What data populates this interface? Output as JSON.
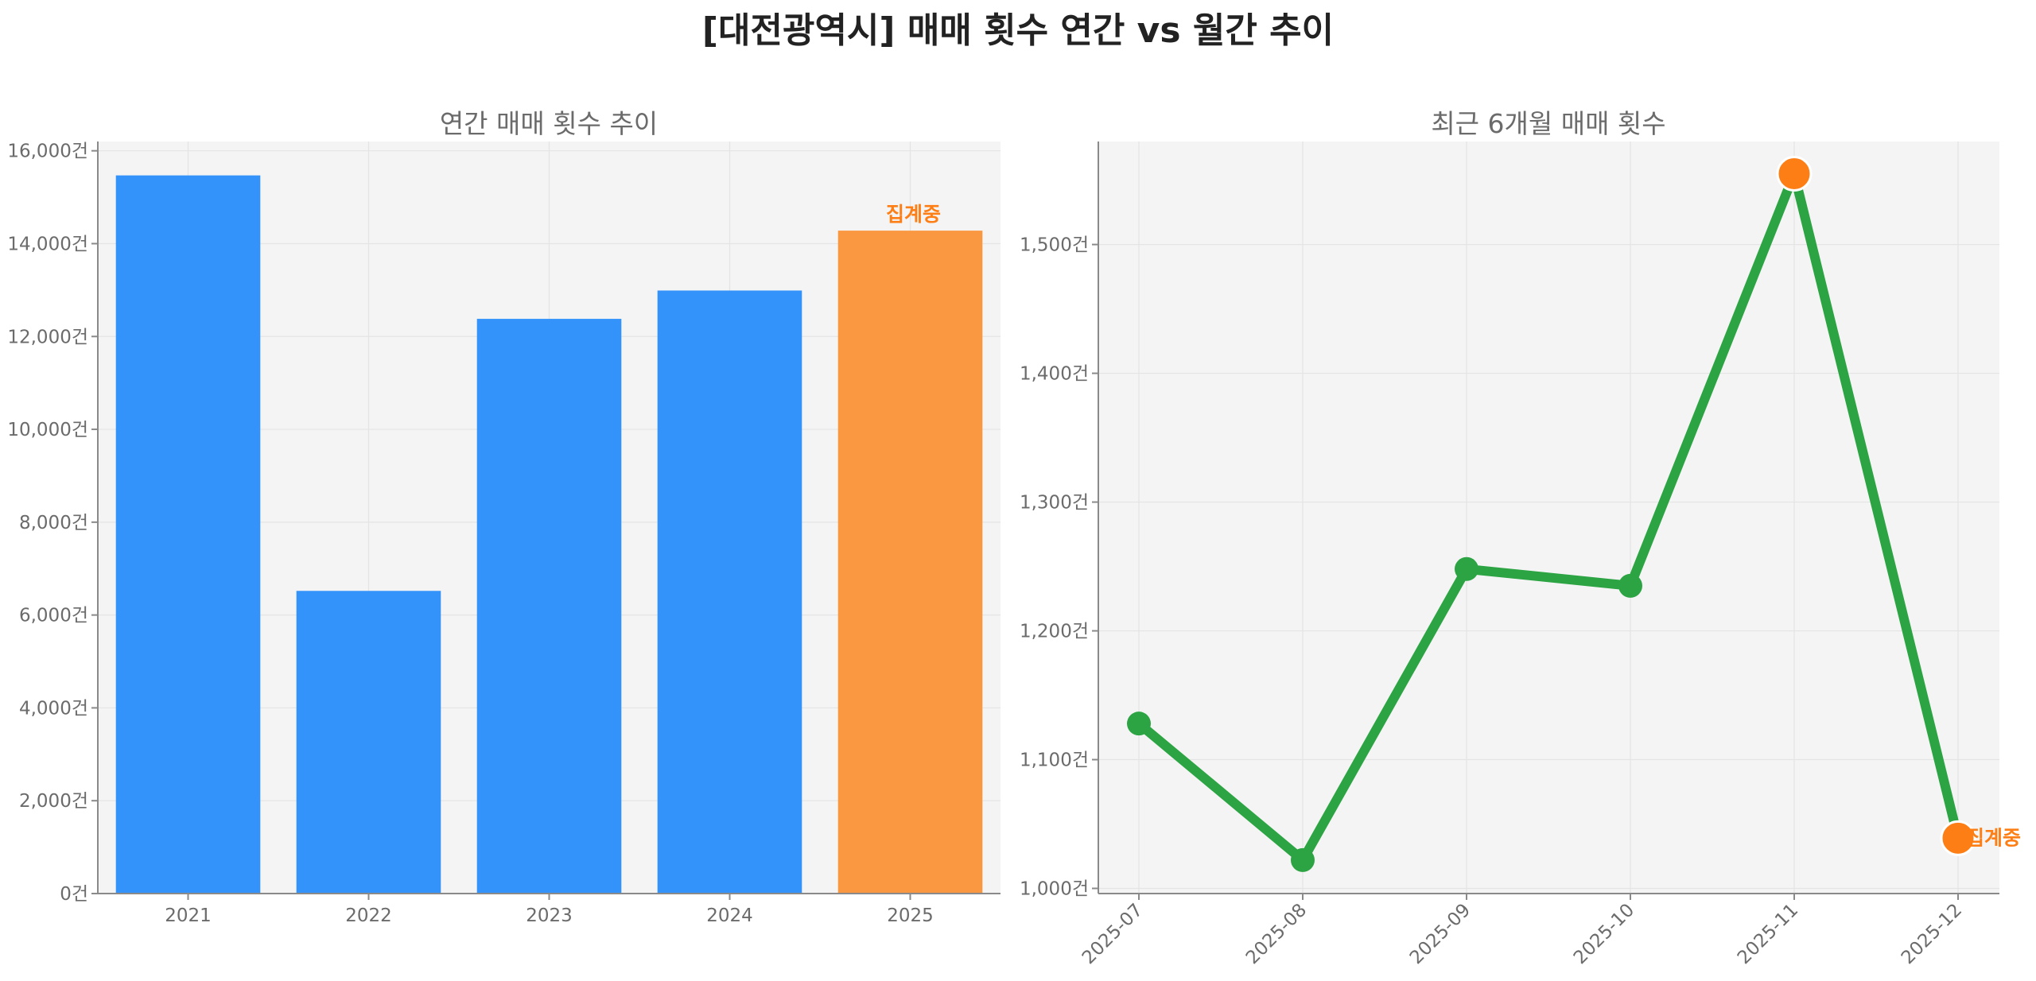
{
  "title": "[대전광역시] 매매 횟수 연간 vs 월간 추이",
  "colors": {
    "bar": "#3393FB",
    "highlight": "#FA9842",
    "line": "#2CA443",
    "marker_highlight": "#FD7E14",
    "note": "#FD7E14",
    "plot_bg": "#F4F4F4"
  },
  "chart_data": [
    {
      "type": "bar",
      "title": "연간 매매 횟수 추이",
      "categories": [
        "2021",
        "2022",
        "2023",
        "2024",
        "2025"
      ],
      "values": [
        15470,
        6520,
        12380,
        12990,
        14280
      ],
      "highlight_index": 4,
      "highlight_note": "집계중",
      "ylim": [
        0,
        16200
      ],
      "yticks": [
        0,
        2000,
        4000,
        6000,
        8000,
        10000,
        12000,
        14000,
        16000
      ],
      "ytick_labels": [
        "0건",
        "2,000건",
        "4,000건",
        "6,000건",
        "8,000건",
        "10,000건",
        "12,000건",
        "14,000건",
        "16,000건"
      ],
      "grid": true
    },
    {
      "type": "line",
      "title": "최근 6개월 매매 횟수",
      "x": [
        "2025-07",
        "2025-08",
        "2025-09",
        "2025-10",
        "2025-11",
        "2025-12"
      ],
      "values": [
        1128,
        1022,
        1248,
        1235,
        1555,
        1039
      ],
      "highlight_indices": [
        4,
        5
      ],
      "highlight_note": "집계중",
      "ylim": [
        996,
        1580
      ],
      "yticks": [
        1000,
        1100,
        1200,
        1300,
        1400,
        1500
      ],
      "ytick_labels": [
        "1,000건",
        "1,100건",
        "1,200건",
        "1,300건",
        "1,400건",
        "1,500건"
      ],
      "grid": true
    }
  ]
}
